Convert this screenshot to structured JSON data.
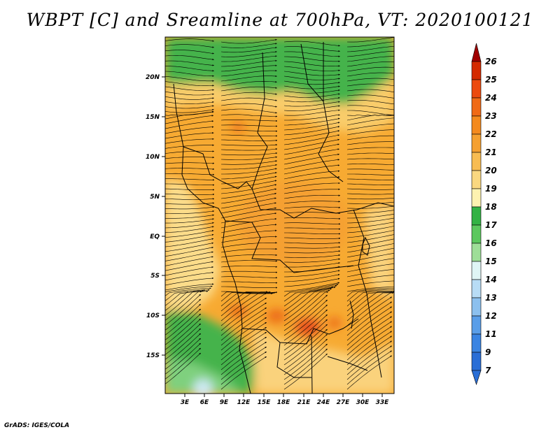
{
  "title": "WBPT [C] and Sreamline at 700hPa, VT: 2020100121",
  "footer": "GrADS: IGES/COLA",
  "lat_labels": [
    "20N",
    "15N",
    "10N",
    "5N",
    "EQ",
    "5S",
    "10S",
    "15S"
  ],
  "lon_labels": [
    "3E",
    "6E",
    "9E",
    "12E",
    "15E",
    "18E",
    "21E",
    "24E",
    "27E",
    "30E",
    "33E"
  ],
  "colorbar": {
    "labels": [
      "26",
      "25",
      "24",
      "23",
      "22",
      "21",
      "20",
      "19",
      "18",
      "17",
      "16",
      "15",
      "14",
      "13",
      "12",
      "11",
      "9",
      "7"
    ],
    "colors": [
      "#b40000",
      "#d42a00",
      "#ec4a0e",
      "#f06a16",
      "#f48a1e",
      "#f5a030",
      "#f8bc52",
      "#fad880",
      "#fdf2b0",
      "#33b244",
      "#5cc85e",
      "#9ede98",
      "#dff5f5",
      "#b8dcf5",
      "#8cc0ee",
      "#5a9ee8",
      "#3a84e2",
      "#2a6ed6"
    ]
  },
  "colors": {
    "top_arrow": "#a00000",
    "bottom_arrow": "#2a6ed6",
    "map_base": "#f7aa32"
  }
}
